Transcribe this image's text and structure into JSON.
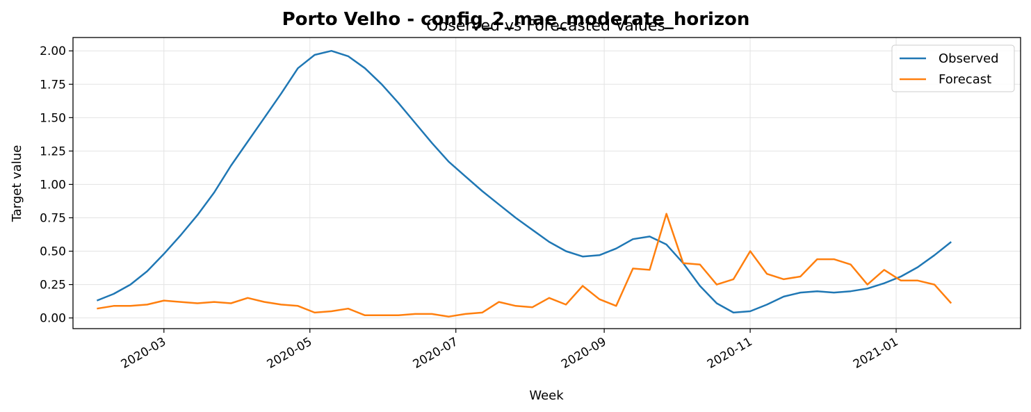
{
  "chart_data": {
    "type": "line",
    "title": "Porto Velho - config_2_mae_moderate_horizon",
    "subtitle": "Observed vs Forecasted Values",
    "xlabel": "Week",
    "ylabel": "Target value",
    "ylim": [
      -0.08,
      2.1
    ],
    "xlim": [
      "2020-01-23",
      "2021-02-22"
    ],
    "yticks": [
      "0.00",
      "0.25",
      "0.50",
      "0.75",
      "1.00",
      "1.25",
      "1.50",
      "1.75",
      "2.00"
    ],
    "xticks": [
      "2020-03",
      "2020-05",
      "2020-07",
      "2020-09",
      "2020-11",
      "2021-01"
    ],
    "grid": true,
    "legend_position": "top-right",
    "x": [
      "2020-02-02",
      "2020-02-09",
      "2020-02-16",
      "2020-02-23",
      "2020-03-01",
      "2020-03-08",
      "2020-03-15",
      "2020-03-22",
      "2020-03-29",
      "2020-04-05",
      "2020-04-12",
      "2020-04-19",
      "2020-04-26",
      "2020-05-03",
      "2020-05-10",
      "2020-05-17",
      "2020-05-24",
      "2020-05-31",
      "2020-06-07",
      "2020-06-14",
      "2020-06-21",
      "2020-06-28",
      "2020-07-05",
      "2020-07-12",
      "2020-07-19",
      "2020-07-26",
      "2020-08-02",
      "2020-08-09",
      "2020-08-16",
      "2020-08-23",
      "2020-08-30",
      "2020-09-06",
      "2020-09-13",
      "2020-09-20",
      "2020-09-27",
      "2020-10-04",
      "2020-10-11",
      "2020-10-18",
      "2020-10-25",
      "2020-11-01",
      "2020-11-08",
      "2020-11-15",
      "2020-11-22",
      "2020-11-29",
      "2020-12-06",
      "2020-12-13",
      "2020-12-20",
      "2020-12-27",
      "2021-01-03",
      "2021-01-10",
      "2021-01-17",
      "2021-01-24"
    ],
    "series": [
      {
        "name": "Observed",
        "color": "#1f77b4",
        "values": [
          0.13,
          0.18,
          0.25,
          0.35,
          0.48,
          0.62,
          0.77,
          0.94,
          1.14,
          1.32,
          1.5,
          1.68,
          1.87,
          1.97,
          2.0,
          1.96,
          1.87,
          1.75,
          1.61,
          1.46,
          1.31,
          1.17,
          1.06,
          0.95,
          0.85,
          0.75,
          0.66,
          0.57,
          0.5,
          0.46,
          0.47,
          0.52,
          0.59,
          0.61,
          0.55,
          0.41,
          0.24,
          0.11,
          0.04,
          0.05,
          0.1,
          0.16,
          0.19,
          0.2,
          0.19,
          0.2,
          0.22,
          0.26,
          0.31,
          0.38,
          0.47,
          0.57
        ]
      },
      {
        "name": "Forecast",
        "color": "#ff7f0e",
        "values": [
          0.07,
          0.09,
          0.09,
          0.1,
          0.13,
          0.12,
          0.11,
          0.12,
          0.11,
          0.15,
          0.12,
          0.1,
          0.09,
          0.04,
          0.05,
          0.07,
          0.02,
          0.02,
          0.02,
          0.03,
          0.03,
          0.01,
          0.03,
          0.04,
          0.12,
          0.09,
          0.08,
          0.15,
          0.1,
          0.24,
          0.14,
          0.09,
          0.37,
          0.36,
          0.78,
          0.41,
          0.4,
          0.25,
          0.29,
          0.5,
          0.33,
          0.29,
          0.31,
          0.44,
          0.44,
          0.4,
          0.25,
          0.36,
          0.28,
          0.28,
          0.25,
          0.11
        ]
      }
    ]
  }
}
